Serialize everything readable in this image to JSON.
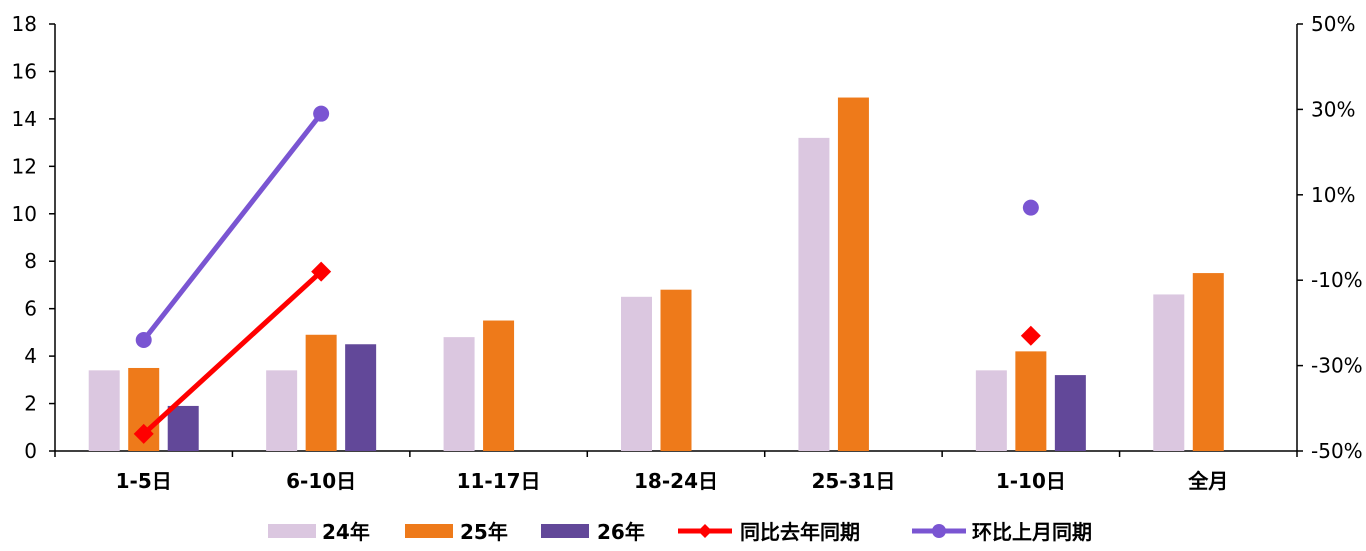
{
  "chart_data": {
    "type": "bar",
    "categories": [
      "1-5日",
      "6-10日",
      "11-17日",
      "18-24日",
      "25-31日",
      "1-10日",
      "全月"
    ],
    "y_left": {
      "ticks": [
        "0",
        "2",
        "4",
        "6",
        "8",
        "10",
        "12",
        "14",
        "16",
        "18"
      ],
      "ylim": [
        0,
        18
      ]
    },
    "y_right": {
      "ticks": [
        "-50%",
        "-30%",
        "-10%",
        "10%",
        "30%",
        "50%"
      ],
      "ylim": [
        -0.5,
        0.5
      ]
    },
    "grid": false,
    "legend_position": "bottom",
    "series": [
      {
        "name": "24年",
        "kind": "bar",
        "axis": "left",
        "color": "#dbc7e0",
        "values": [
          3.4,
          3.4,
          4.8,
          6.5,
          13.2,
          3.4,
          6.6
        ]
      },
      {
        "name": "25年",
        "kind": "bar",
        "axis": "left",
        "color": "#ee7a1a",
        "values": [
          3.5,
          4.9,
          5.5,
          6.8,
          14.9,
          4.2,
          7.5
        ]
      },
      {
        "name": "26年",
        "kind": "bar",
        "axis": "left",
        "color": "#624899",
        "values": [
          1.9,
          4.5,
          null,
          null,
          null,
          3.2,
          null
        ]
      },
      {
        "name": "同比去年同期",
        "kind": "line",
        "marker": "diamond",
        "axis": "right",
        "color": "#ff0000",
        "values": [
          -0.46,
          -0.08,
          null,
          null,
          null,
          -0.23,
          null
        ]
      },
      {
        "name": "环比上月同期",
        "kind": "line",
        "marker": "circle",
        "axis": "right",
        "color": "#7a55d2",
        "values": [
          -0.24,
          0.29,
          null,
          null,
          null,
          0.07,
          null
        ]
      }
    ]
  }
}
